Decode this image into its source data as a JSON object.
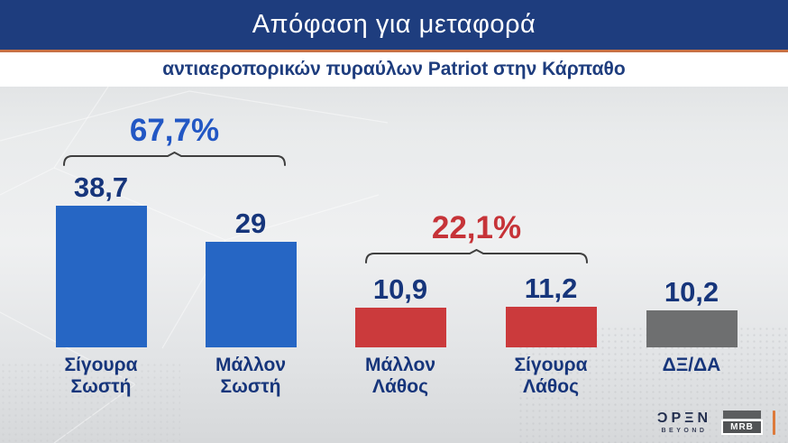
{
  "header": {
    "title": "Απόφαση για μεταφορά",
    "subtitle": "αντιαεροπορικών πυραύλων Patriot στην Κάρπαθο",
    "bar_color": "#1e3d7e",
    "accent_line_color": "#c87144"
  },
  "chart_data": {
    "type": "bar",
    "title": "Απόφαση για μεταφορά αντιαεροπορικών πυραύλων Patriot στην Κάρπαθο",
    "categories": [
      "Σίγουρα Σωστή",
      "Μάλλον Σωστή",
      "Μάλλον Λάθος",
      "Σίγουρα Λάθος",
      "ΔΞ/ΔΑ"
    ],
    "values": [
      38.7,
      29,
      10.9,
      11.2,
      10.2
    ],
    "value_labels": [
      "38,7",
      "29",
      "10,9",
      "11,2",
      "10,2"
    ],
    "bar_colors": [
      "#2666c4",
      "#2666c4",
      "#cb3a3c",
      "#cb3a3c",
      "#6e6f70"
    ],
    "value_label_color": "#16357b",
    "bracket_color": "#3f3f3f",
    "groups": [
      {
        "label": "67,7%",
        "members": [
          "Σίγουρα Σωστή",
          "Μάλλον Σωστή"
        ],
        "total": 67.7,
        "color": "#2257c4"
      },
      {
        "label": "22,1%",
        "members": [
          "Μάλλον Λάθος",
          "Σίγουρα Λάθος"
        ],
        "total": 22.1,
        "color": "#c63338"
      }
    ],
    "ylim": [
      0,
      45
    ],
    "grid": false,
    "legend": false
  },
  "columns": [
    {
      "value": "38,7",
      "line1": "Σίγουρα",
      "line2": "Σωστή"
    },
    {
      "value": "29",
      "line1": "Μάλλον",
      "line2": "Σωστή"
    },
    {
      "value": "10,9",
      "line1": "Μάλλον",
      "line2": "Λάθος"
    },
    {
      "value": "11,2",
      "line1": "Σίγουρα",
      "line2": "Λάθος"
    },
    {
      "value": "10,2",
      "line1": "ΔΞ/ΔΑ",
      "line2": ""
    }
  ],
  "footer": {
    "open_word": "ƆPΞN",
    "open_sub": "BEYOND",
    "mrb": "MRB"
  }
}
